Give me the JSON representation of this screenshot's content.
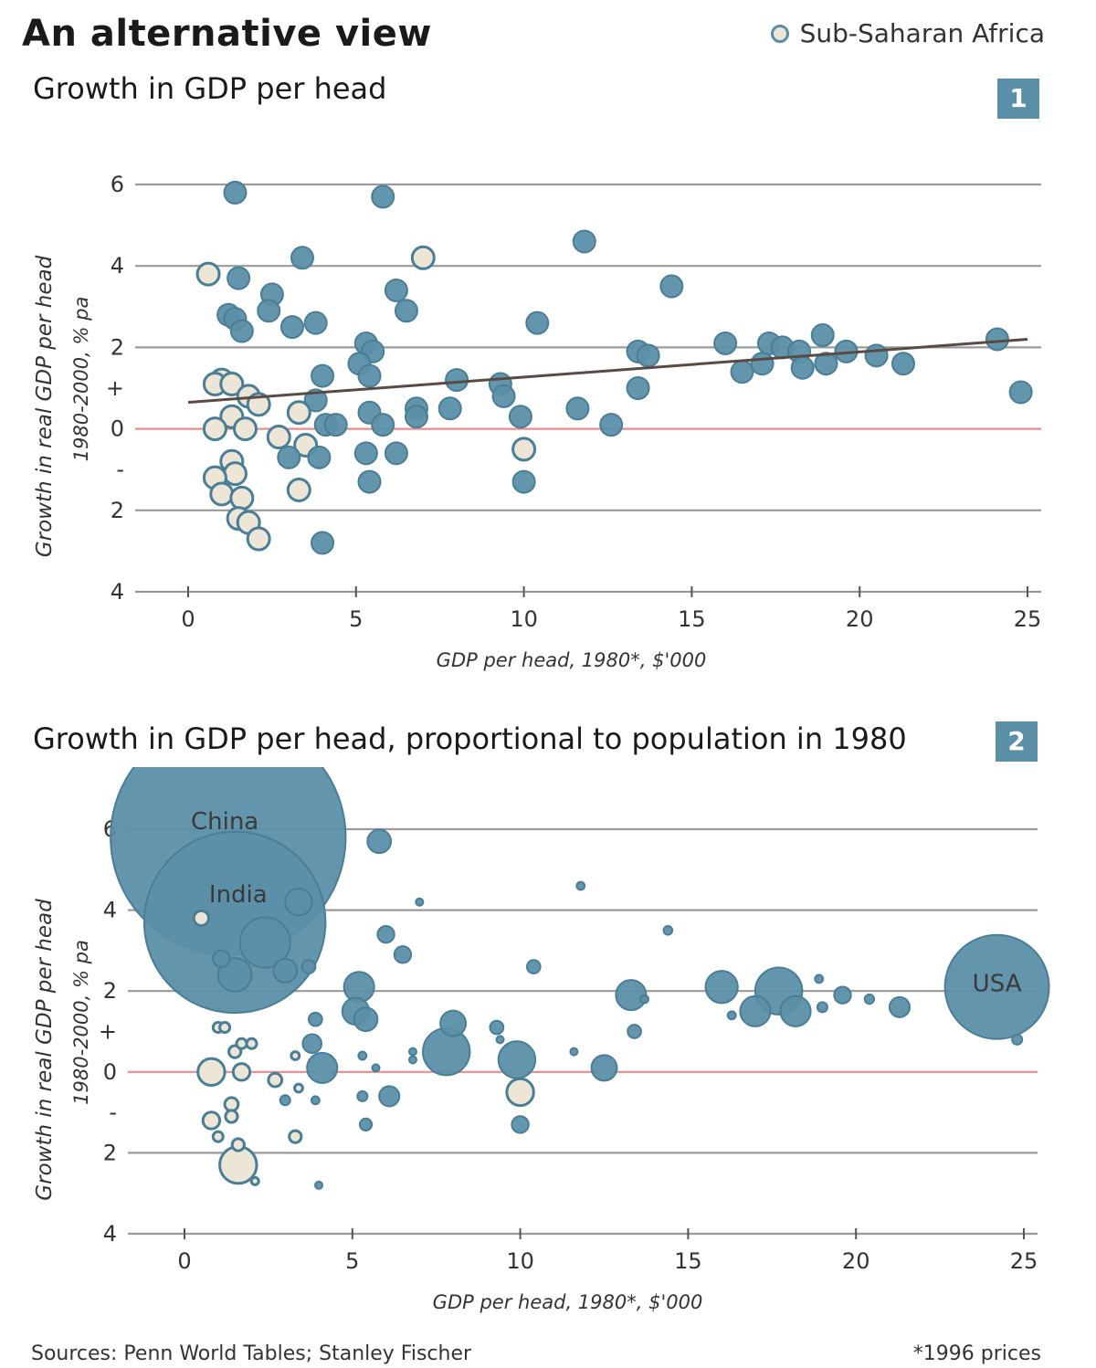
{
  "title": "An alternative view",
  "legend": {
    "label": "Sub-Saharan Africa"
  },
  "colors": {
    "other": "#5b8fa8",
    "africa": "#ede6d6",
    "outline": "#4a7e97",
    "zero_line": "#f08a8a",
    "grid": "#9a9a9a",
    "trend": "#5a4a44"
  },
  "footer": {
    "sources": "Sources: Penn World Tables; Stanley Fischer",
    "note": "*1996 prices"
  },
  "chart_data": [
    {
      "type": "scatter",
      "badge": "1",
      "title": "Growth in GDP per head",
      "xlabel": "GDP per head, 1980*, $'000",
      "ylabel": "Growth in real GDP per head",
      "ylabel_sub": "1980-2000, % pa",
      "xlim": [
        0,
        25
      ],
      "ylim": [
        -4,
        6
      ],
      "xticks": [
        0,
        5,
        10,
        15,
        20,
        25
      ],
      "yticks": [
        {
          "value": 6,
          "label": "6"
        },
        {
          "value": 4,
          "label": "4"
        },
        {
          "value": 2,
          "label": "2"
        },
        {
          "value": 1,
          "label": "+"
        },
        {
          "value": 0,
          "label": "0"
        },
        {
          "value": -1,
          "label": "-"
        },
        {
          "value": -2,
          "label": "2"
        },
        {
          "value": -4,
          "label": "4"
        }
      ],
      "grid": true,
      "trendline": [
        [
          0,
          0.65
        ],
        [
          25,
          2.2
        ]
      ],
      "points": [
        {
          "x": 0.6,
          "y": 3.8,
          "a": 1
        },
        {
          "x": 1.4,
          "y": 5.8,
          "a": 0
        },
        {
          "x": 1.5,
          "y": 3.7,
          "a": 0
        },
        {
          "x": 1.2,
          "y": 2.8,
          "a": 0
        },
        {
          "x": 1.4,
          "y": 2.7,
          "a": 0
        },
        {
          "x": 1.6,
          "y": 2.4,
          "a": 0
        },
        {
          "x": 2.5,
          "y": 3.3,
          "a": 0
        },
        {
          "x": 2.4,
          "y": 2.9,
          "a": 0
        },
        {
          "x": 3.1,
          "y": 2.5,
          "a": 0
        },
        {
          "x": 3.4,
          "y": 4.2,
          "a": 0
        },
        {
          "x": 3.8,
          "y": 2.6,
          "a": 0
        },
        {
          "x": 5.8,
          "y": 5.7,
          "a": 0
        },
        {
          "x": 7.0,
          "y": 4.2,
          "a": 1
        },
        {
          "x": 6.2,
          "y": 3.4,
          "a": 0
        },
        {
          "x": 6.5,
          "y": 2.9,
          "a": 0
        },
        {
          "x": 5.3,
          "y": 2.1,
          "a": 0
        },
        {
          "x": 5.5,
          "y": 1.9,
          "a": 0
        },
        {
          "x": 5.1,
          "y": 1.6,
          "a": 0
        },
        {
          "x": 5.4,
          "y": 1.3,
          "a": 0
        },
        {
          "x": 4.0,
          "y": 1.3,
          "a": 0
        },
        {
          "x": 3.8,
          "y": 0.7,
          "a": 0
        },
        {
          "x": 1.0,
          "y": 1.2,
          "a": 1
        },
        {
          "x": 0.8,
          "y": 1.1,
          "a": 1
        },
        {
          "x": 1.3,
          "y": 1.1,
          "a": 1
        },
        {
          "x": 1.8,
          "y": 0.8,
          "a": 1
        },
        {
          "x": 2.1,
          "y": 0.6,
          "a": 1
        },
        {
          "x": 1.3,
          "y": 0.3,
          "a": 1
        },
        {
          "x": 0.8,
          "y": 0.0,
          "a": 1
        },
        {
          "x": 1.7,
          "y": 0.0,
          "a": 1
        },
        {
          "x": 3.3,
          "y": 0.4,
          "a": 1
        },
        {
          "x": 2.7,
          "y": -0.2,
          "a": 1
        },
        {
          "x": 3.5,
          "y": -0.4,
          "a": 1
        },
        {
          "x": 3.0,
          "y": -0.7,
          "a": 0
        },
        {
          "x": 3.9,
          "y": -0.7,
          "a": 0
        },
        {
          "x": 4.1,
          "y": 0.1,
          "a": 0
        },
        {
          "x": 4.4,
          "y": 0.1,
          "a": 0
        },
        {
          "x": 5.4,
          "y": 0.4,
          "a": 0
        },
        {
          "x": 5.8,
          "y": 0.1,
          "a": 0
        },
        {
          "x": 5.3,
          "y": -0.6,
          "a": 0
        },
        {
          "x": 6.2,
          "y": -0.6,
          "a": 0
        },
        {
          "x": 5.4,
          "y": -1.3,
          "a": 0
        },
        {
          "x": 6.8,
          "y": 0.5,
          "a": 0
        },
        {
          "x": 6.8,
          "y": 0.3,
          "a": 0
        },
        {
          "x": 7.8,
          "y": 0.5,
          "a": 0
        },
        {
          "x": 8.0,
          "y": 1.2,
          "a": 0
        },
        {
          "x": 9.3,
          "y": 1.1,
          "a": 0
        },
        {
          "x": 9.4,
          "y": 0.8,
          "a": 0
        },
        {
          "x": 9.9,
          "y": 0.3,
          "a": 0
        },
        {
          "x": 10.0,
          "y": -0.5,
          "a": 1
        },
        {
          "x": 10.0,
          "y": -1.3,
          "a": 0
        },
        {
          "x": 10.4,
          "y": 2.6,
          "a": 0
        },
        {
          "x": 11.6,
          "y": 0.5,
          "a": 0
        },
        {
          "x": 11.8,
          "y": 4.6,
          "a": 0
        },
        {
          "x": 12.6,
          "y": 0.1,
          "a": 0
        },
        {
          "x": 13.4,
          "y": 1.9,
          "a": 0
        },
        {
          "x": 13.4,
          "y": 1.0,
          "a": 0
        },
        {
          "x": 13.7,
          "y": 1.8,
          "a": 0
        },
        {
          "x": 14.4,
          "y": 3.5,
          "a": 0
        },
        {
          "x": 16.0,
          "y": 2.1,
          "a": 0
        },
        {
          "x": 16.5,
          "y": 1.4,
          "a": 0
        },
        {
          "x": 17.1,
          "y": 1.6,
          "a": 0
        },
        {
          "x": 17.3,
          "y": 2.1,
          "a": 0
        },
        {
          "x": 17.7,
          "y": 2.0,
          "a": 0
        },
        {
          "x": 18.2,
          "y": 1.9,
          "a": 0
        },
        {
          "x": 18.3,
          "y": 1.5,
          "a": 0
        },
        {
          "x": 18.9,
          "y": 2.3,
          "a": 0
        },
        {
          "x": 19.0,
          "y": 1.6,
          "a": 0
        },
        {
          "x": 19.6,
          "y": 1.9,
          "a": 0
        },
        {
          "x": 20.5,
          "y": 1.8,
          "a": 0
        },
        {
          "x": 21.3,
          "y": 1.6,
          "a": 0
        },
        {
          "x": 24.1,
          "y": 2.2,
          "a": 0
        },
        {
          "x": 24.8,
          "y": 0.9,
          "a": 0
        },
        {
          "x": 1.3,
          "y": -0.8,
          "a": 1
        },
        {
          "x": 1.4,
          "y": -1.1,
          "a": 1
        },
        {
          "x": 0.8,
          "y": -1.2,
          "a": 1
        },
        {
          "x": 1.0,
          "y": -1.6,
          "a": 1
        },
        {
          "x": 1.6,
          "y": -1.7,
          "a": 1
        },
        {
          "x": 1.5,
          "y": -2.2,
          "a": 1
        },
        {
          "x": 1.8,
          "y": -2.3,
          "a": 1
        },
        {
          "x": 2.1,
          "y": -2.7,
          "a": 1
        },
        {
          "x": 3.3,
          "y": -1.5,
          "a": 1
        },
        {
          "x": 4.0,
          "y": -2.8,
          "a": 0
        }
      ]
    },
    {
      "type": "scatter",
      "badge": "2",
      "title": "Growth in GDP per head, proportional to population in 1980",
      "xlabel": "GDP per head, 1980*, $'000",
      "ylabel": "Growth in real GDP per head",
      "ylabel_sub": "1980-2000, % pa",
      "xlim": [
        0,
        25
      ],
      "ylim": [
        -4,
        6
      ],
      "xticks": [
        0,
        5,
        10,
        15,
        20,
        25
      ],
      "yticks": [
        {
          "value": 6,
          "label": "6"
        },
        {
          "value": 4,
          "label": "4"
        },
        {
          "value": 2,
          "label": "2"
        },
        {
          "value": 1,
          "label": "+"
        },
        {
          "value": 0,
          "label": "0"
        },
        {
          "value": -1,
          "label": "-"
        },
        {
          "value": -2,
          "label": "2"
        },
        {
          "value": -4,
          "label": "4"
        }
      ],
      "grid": true,
      "annotations": [
        {
          "x": 1.2,
          "y": 6.2,
          "text": "China"
        },
        {
          "x": 1.6,
          "y": 4.4,
          "text": "India"
        },
        {
          "x": 24.2,
          "y": 2.2,
          "text": "USA"
        }
      ],
      "points": [
        {
          "x": 1.3,
          "y": 5.8,
          "r": 3.5,
          "a": 0,
          "label": "China"
        },
        {
          "x": 1.5,
          "y": 3.7,
          "r": 2.7,
          "a": 0,
          "label": "India"
        },
        {
          "x": 24.2,
          "y": 2.1,
          "r": 1.55,
          "a": 0,
          "label": "USA"
        },
        {
          "x": 0.5,
          "y": 3.8,
          "r": 0.22,
          "a": 1
        },
        {
          "x": 5.8,
          "y": 5.7,
          "r": 0.35,
          "a": 0
        },
        {
          "x": 3.4,
          "y": 4.2,
          "r": 0.4,
          "a": 0
        },
        {
          "x": 2.4,
          "y": 3.2,
          "r": 0.75,
          "a": 0
        },
        {
          "x": 1.5,
          "y": 2.4,
          "r": 0.5,
          "a": 0
        },
        {
          "x": 1.1,
          "y": 2.8,
          "r": 0.25,
          "a": 0
        },
        {
          "x": 3.0,
          "y": 2.5,
          "r": 0.35,
          "a": 0
        },
        {
          "x": 3.7,
          "y": 2.6,
          "r": 0.2,
          "a": 0
        },
        {
          "x": 6.0,
          "y": 3.4,
          "r": 0.25,
          "a": 0
        },
        {
          "x": 6.5,
          "y": 2.9,
          "r": 0.25,
          "a": 0
        },
        {
          "x": 7.0,
          "y": 4.2,
          "r": 0.08,
          "a": 0
        },
        {
          "x": 11.8,
          "y": 4.6,
          "r": 0.12,
          "a": 0
        },
        {
          "x": 14.4,
          "y": 3.5,
          "r": 0.13,
          "a": 0
        },
        {
          "x": 10.4,
          "y": 2.6,
          "r": 0.2,
          "a": 0
        },
        {
          "x": 5.2,
          "y": 2.1,
          "r": 0.45,
          "a": 0
        },
        {
          "x": 5.1,
          "y": 1.5,
          "r": 0.4,
          "a": 0
        },
        {
          "x": 5.4,
          "y": 1.3,
          "r": 0.35,
          "a": 0
        },
        {
          "x": 3.9,
          "y": 1.3,
          "r": 0.2,
          "a": 0
        },
        {
          "x": 3.8,
          "y": 0.7,
          "r": 0.28,
          "a": 0
        },
        {
          "x": 8.0,
          "y": 1.2,
          "r": 0.38,
          "a": 0
        },
        {
          "x": 7.8,
          "y": 0.5,
          "r": 0.7,
          "a": 0
        },
        {
          "x": 9.3,
          "y": 1.1,
          "r": 0.2,
          "a": 0
        },
        {
          "x": 9.4,
          "y": 0.8,
          "r": 0.1,
          "a": 0
        },
        {
          "x": 9.9,
          "y": 0.3,
          "r": 0.55,
          "a": 0
        },
        {
          "x": 10.0,
          "y": -0.5,
          "r": 0.4,
          "a": 1
        },
        {
          "x": 10.0,
          "y": -1.3,
          "r": 0.25,
          "a": 0
        },
        {
          "x": 11.6,
          "y": 0.5,
          "r": 0.06,
          "a": 0
        },
        {
          "x": 12.5,
          "y": 0.1,
          "r": 0.38,
          "a": 0
        },
        {
          "x": 13.3,
          "y": 1.9,
          "r": 0.45,
          "a": 0
        },
        {
          "x": 13.4,
          "y": 1.0,
          "r": 0.2,
          "a": 0
        },
        {
          "x": 13.7,
          "y": 1.8,
          "r": 0.12,
          "a": 0
        },
        {
          "x": 16.0,
          "y": 2.1,
          "r": 0.48,
          "a": 0
        },
        {
          "x": 16.3,
          "y": 1.4,
          "r": 0.12,
          "a": 0
        },
        {
          "x": 17.0,
          "y": 1.5,
          "r": 0.45,
          "a": 0
        },
        {
          "x": 17.7,
          "y": 2.0,
          "r": 0.7,
          "a": 0
        },
        {
          "x": 18.2,
          "y": 1.5,
          "r": 0.45,
          "a": 0
        },
        {
          "x": 18.9,
          "y": 2.3,
          "r": 0.12,
          "a": 0
        },
        {
          "x": 19.0,
          "y": 1.6,
          "r": 0.15,
          "a": 0
        },
        {
          "x": 19.6,
          "y": 1.9,
          "r": 0.25,
          "a": 0
        },
        {
          "x": 20.4,
          "y": 1.8,
          "r": 0.14,
          "a": 0
        },
        {
          "x": 21.3,
          "y": 1.6,
          "r": 0.3,
          "a": 0
        },
        {
          "x": 24.8,
          "y": 0.8,
          "r": 0.15,
          "a": 0
        },
        {
          "x": 6.8,
          "y": 0.5,
          "r": 0.1,
          "a": 0
        },
        {
          "x": 6.8,
          "y": 0.3,
          "r": 0.1,
          "a": 0
        },
        {
          "x": 4.1,
          "y": 0.1,
          "r": 0.45,
          "a": 0
        },
        {
          "x": 5.3,
          "y": 0.4,
          "r": 0.12,
          "a": 0
        },
        {
          "x": 5.7,
          "y": 0.1,
          "r": 0.1,
          "a": 0
        },
        {
          "x": 5.3,
          "y": -0.6,
          "r": 0.15,
          "a": 0
        },
        {
          "x": 6.1,
          "y": -0.6,
          "r": 0.3,
          "a": 0
        },
        {
          "x": 5.4,
          "y": -1.3,
          "r": 0.18,
          "a": 0
        },
        {
          "x": 3.0,
          "y": -0.7,
          "r": 0.15,
          "a": 0
        },
        {
          "x": 3.9,
          "y": -0.7,
          "r": 0.12,
          "a": 0
        },
        {
          "x": 4.0,
          "y": -2.8,
          "r": 0.1,
          "a": 0
        },
        {
          "x": 1.0,
          "y": 1.1,
          "r": 0.15,
          "a": 1
        },
        {
          "x": 1.2,
          "y": 1.1,
          "r": 0.15,
          "a": 1
        },
        {
          "x": 1.7,
          "y": 0.7,
          "r": 0.15,
          "a": 1
        },
        {
          "x": 2.0,
          "y": 0.7,
          "r": 0.15,
          "a": 1
        },
        {
          "x": 1.5,
          "y": 0.5,
          "r": 0.18,
          "a": 1
        },
        {
          "x": 0.8,
          "y": 0.0,
          "r": 0.4,
          "a": 1
        },
        {
          "x": 1.7,
          "y": 0.0,
          "r": 0.25,
          "a": 1
        },
        {
          "x": 3.3,
          "y": 0.4,
          "r": 0.12,
          "a": 1
        },
        {
          "x": 2.7,
          "y": -0.2,
          "r": 0.2,
          "a": 1
        },
        {
          "x": 3.4,
          "y": -0.4,
          "r": 0.12,
          "a": 1
        },
        {
          "x": 1.4,
          "y": -0.8,
          "r": 0.2,
          "a": 1
        },
        {
          "x": 1.4,
          "y": -1.1,
          "r": 0.18,
          "a": 1
        },
        {
          "x": 0.8,
          "y": -1.2,
          "r": 0.25,
          "a": 1
        },
        {
          "x": 1.0,
          "y": -1.6,
          "r": 0.15,
          "a": 1
        },
        {
          "x": 1.6,
          "y": -1.8,
          "r": 0.18,
          "a": 1
        },
        {
          "x": 1.6,
          "y": -2.3,
          "r": 0.55,
          "a": 1
        },
        {
          "x": 2.1,
          "y": -2.7,
          "r": 0.1,
          "a": 1
        },
        {
          "x": 3.3,
          "y": -1.6,
          "r": 0.18,
          "a": 1
        }
      ]
    }
  ]
}
